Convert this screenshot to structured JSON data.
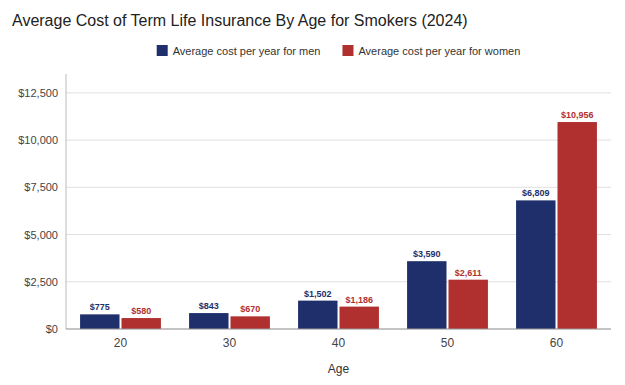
{
  "chart_data": {
    "type": "bar",
    "title": "Average Cost of Term Life Insurance By Age for Smokers (2024)",
    "xlabel": "Age",
    "categories": [
      "20",
      "30",
      "40",
      "50",
      "60"
    ],
    "series": [
      {
        "name": "Average cost per year for men",
        "color": "#1e2f6b",
        "values": [
          775,
          843,
          1502,
          3590,
          6809
        ],
        "value_labels": [
          "$775",
          "$843",
          "$1,502",
          "$3,590",
          "$6,809"
        ]
      },
      {
        "name": "Average cost per year for women",
        "color": "#b03030",
        "values": [
          580,
          670,
          1186,
          2611,
          10956
        ],
        "value_labels": [
          "$580",
          "$670",
          "$1,186",
          "$2,611",
          "$10,956"
        ]
      }
    ],
    "ylim": [
      0,
      13500
    ],
    "yticks": [
      {
        "value": 0,
        "label": "$0"
      },
      {
        "value": 2500,
        "label": "$2,500"
      },
      {
        "value": 5000,
        "label": "$5,000"
      },
      {
        "value": 7500,
        "label": "$7,500"
      },
      {
        "value": 10000,
        "label": "$10,000"
      },
      {
        "value": 12500,
        "label": "$12,500"
      }
    ],
    "grid": true,
    "legend": "top",
    "data_labels": true
  }
}
